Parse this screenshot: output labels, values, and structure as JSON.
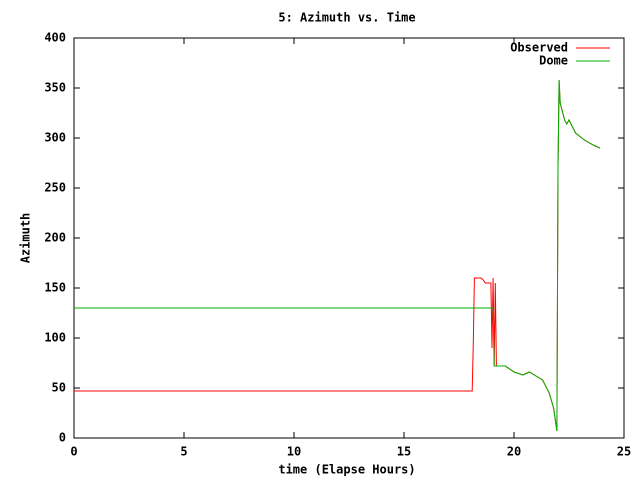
{
  "chart_data": {
    "type": "line",
    "title": "5: Azimuth vs. Time",
    "x_label": "time (Elapse Hours)",
    "y_label": "Azimuth",
    "xlim": [
      0,
      25
    ],
    "xticks": [
      0,
      5,
      10,
      15,
      20,
      25
    ],
    "ylim": [
      0,
      400
    ],
    "yticks": [
      0,
      50,
      100,
      150,
      200,
      250,
      300,
      350,
      400
    ],
    "legend": "top-right",
    "series": [
      {
        "name": "Observed",
        "color": "#ff0000",
        "x": [
          0,
          18.1,
          18.15,
          18.2,
          18.5,
          18.6,
          18.7,
          18.95,
          19.0,
          19.05,
          19.1,
          19.15,
          19.2,
          19.25,
          19.6,
          20.0,
          20.4,
          20.7,
          21.0,
          21.3,
          21.6,
          21.8,
          21.95,
          22.0,
          22.05,
          22.1,
          22.3,
          22.4,
          22.5,
          22.8,
          23.2,
          23.6,
          23.9
        ],
        "values": [
          47,
          47,
          95,
          160,
          160,
          158,
          155,
          155,
          90,
          160,
          72,
          155,
          72,
          72,
          72,
          66,
          63,
          66,
          62,
          58,
          45,
          30,
          7,
          270,
          358,
          335,
          318,
          314,
          318,
          305,
          298,
          293,
          290
        ]
      },
      {
        "name": "Dome",
        "color": "#00b000",
        "x": [
          0,
          19.05,
          19.1,
          19.6,
          20.0,
          20.4,
          20.7,
          21.0,
          21.3,
          21.6,
          21.8,
          21.95,
          22.0,
          22.05,
          22.1,
          22.3,
          22.4,
          22.5,
          22.8,
          23.2,
          23.6,
          23.9
        ],
        "values": [
          130,
          130,
          72,
          72,
          66,
          63,
          66,
          62,
          58,
          45,
          30,
          7,
          270,
          358,
          335,
          318,
          314,
          318,
          305,
          298,
          293,
          290
        ]
      }
    ]
  }
}
